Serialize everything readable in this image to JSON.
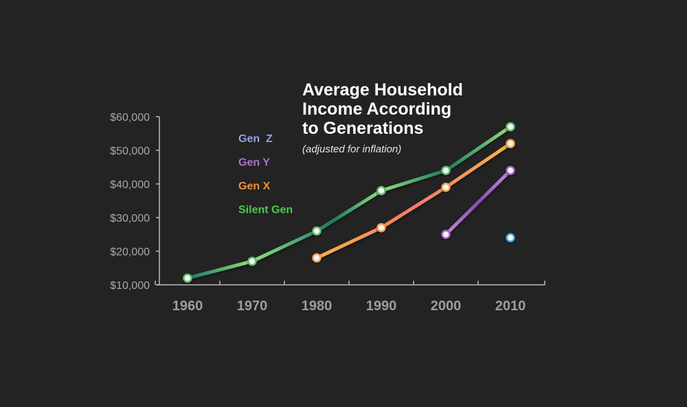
{
  "chart_data": {
    "type": "line",
    "title_lines": [
      "Average Household",
      "Income According",
      "to Generations"
    ],
    "subtitle": "(adjusted for inflation)",
    "xlabel": "",
    "ylabel": "",
    "categories": [
      "1960",
      "1970",
      "1980",
      "1990",
      "2000",
      "2010"
    ],
    "y_ticks": [
      10000,
      20000,
      30000,
      40000,
      50000,
      60000
    ],
    "y_tick_labels": [
      "$10,000",
      "$20,000",
      "$30,000",
      "$40,000",
      "$50,000",
      "$60,000"
    ],
    "ylim": [
      10000,
      60000
    ],
    "legend_position": "top-left",
    "series": [
      {
        "name": "Gen  Z",
        "color": "#3aa9e0",
        "color_start": "#41c4f0",
        "color_end": "#2a7fd0",
        "label_color": "#8fa2e8",
        "values": [
          null,
          null,
          null,
          null,
          null,
          24000
        ]
      },
      {
        "name": "Gen Y",
        "color": "#a766c8",
        "color_start": "#c78ad8",
        "color_end": "#8a4ab8",
        "label_color": "#b070d0",
        "values": [
          null,
          null,
          null,
          null,
          25000,
          44000
        ]
      },
      {
        "name": "Gen X",
        "color": "#f5a050",
        "color_start": "#f7b347",
        "color_end": "#f47a6a",
        "label_color": "#f0903a",
        "values": [
          null,
          null,
          18000,
          27000,
          39000,
          52000
        ]
      },
      {
        "name": "Silent Gen",
        "color": "#5fc070",
        "color_start": "#8fe07c",
        "color_end": "#1f7a62",
        "label_color": "#4cc950",
        "values": [
          12000,
          17000,
          26000,
          38000,
          44000,
          57000
        ]
      }
    ]
  }
}
